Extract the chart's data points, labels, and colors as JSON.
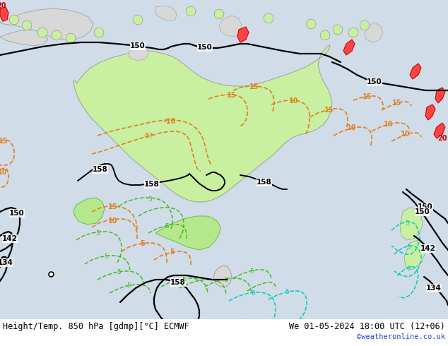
{
  "title_left": "Height/Temp. 850 hPa [gdmp][°C] ECMWF",
  "title_right": "We 01-05-2024 18:00 UTC (12+06)",
  "credit": "©weatheronline.co.uk",
  "bg_ocean": "#d0dce8",
  "bg_land": "#d8d8d8",
  "australia_fill": "#c8f0a0",
  "green_fill": "#aaee66",
  "figsize": [
    6.34,
    4.9
  ],
  "dpi": 100,
  "bottom_bar_color": "#ffffff",
  "title_fontsize": 8.5,
  "credit_color": "#2244cc",
  "credit_fontsize": 7.5
}
